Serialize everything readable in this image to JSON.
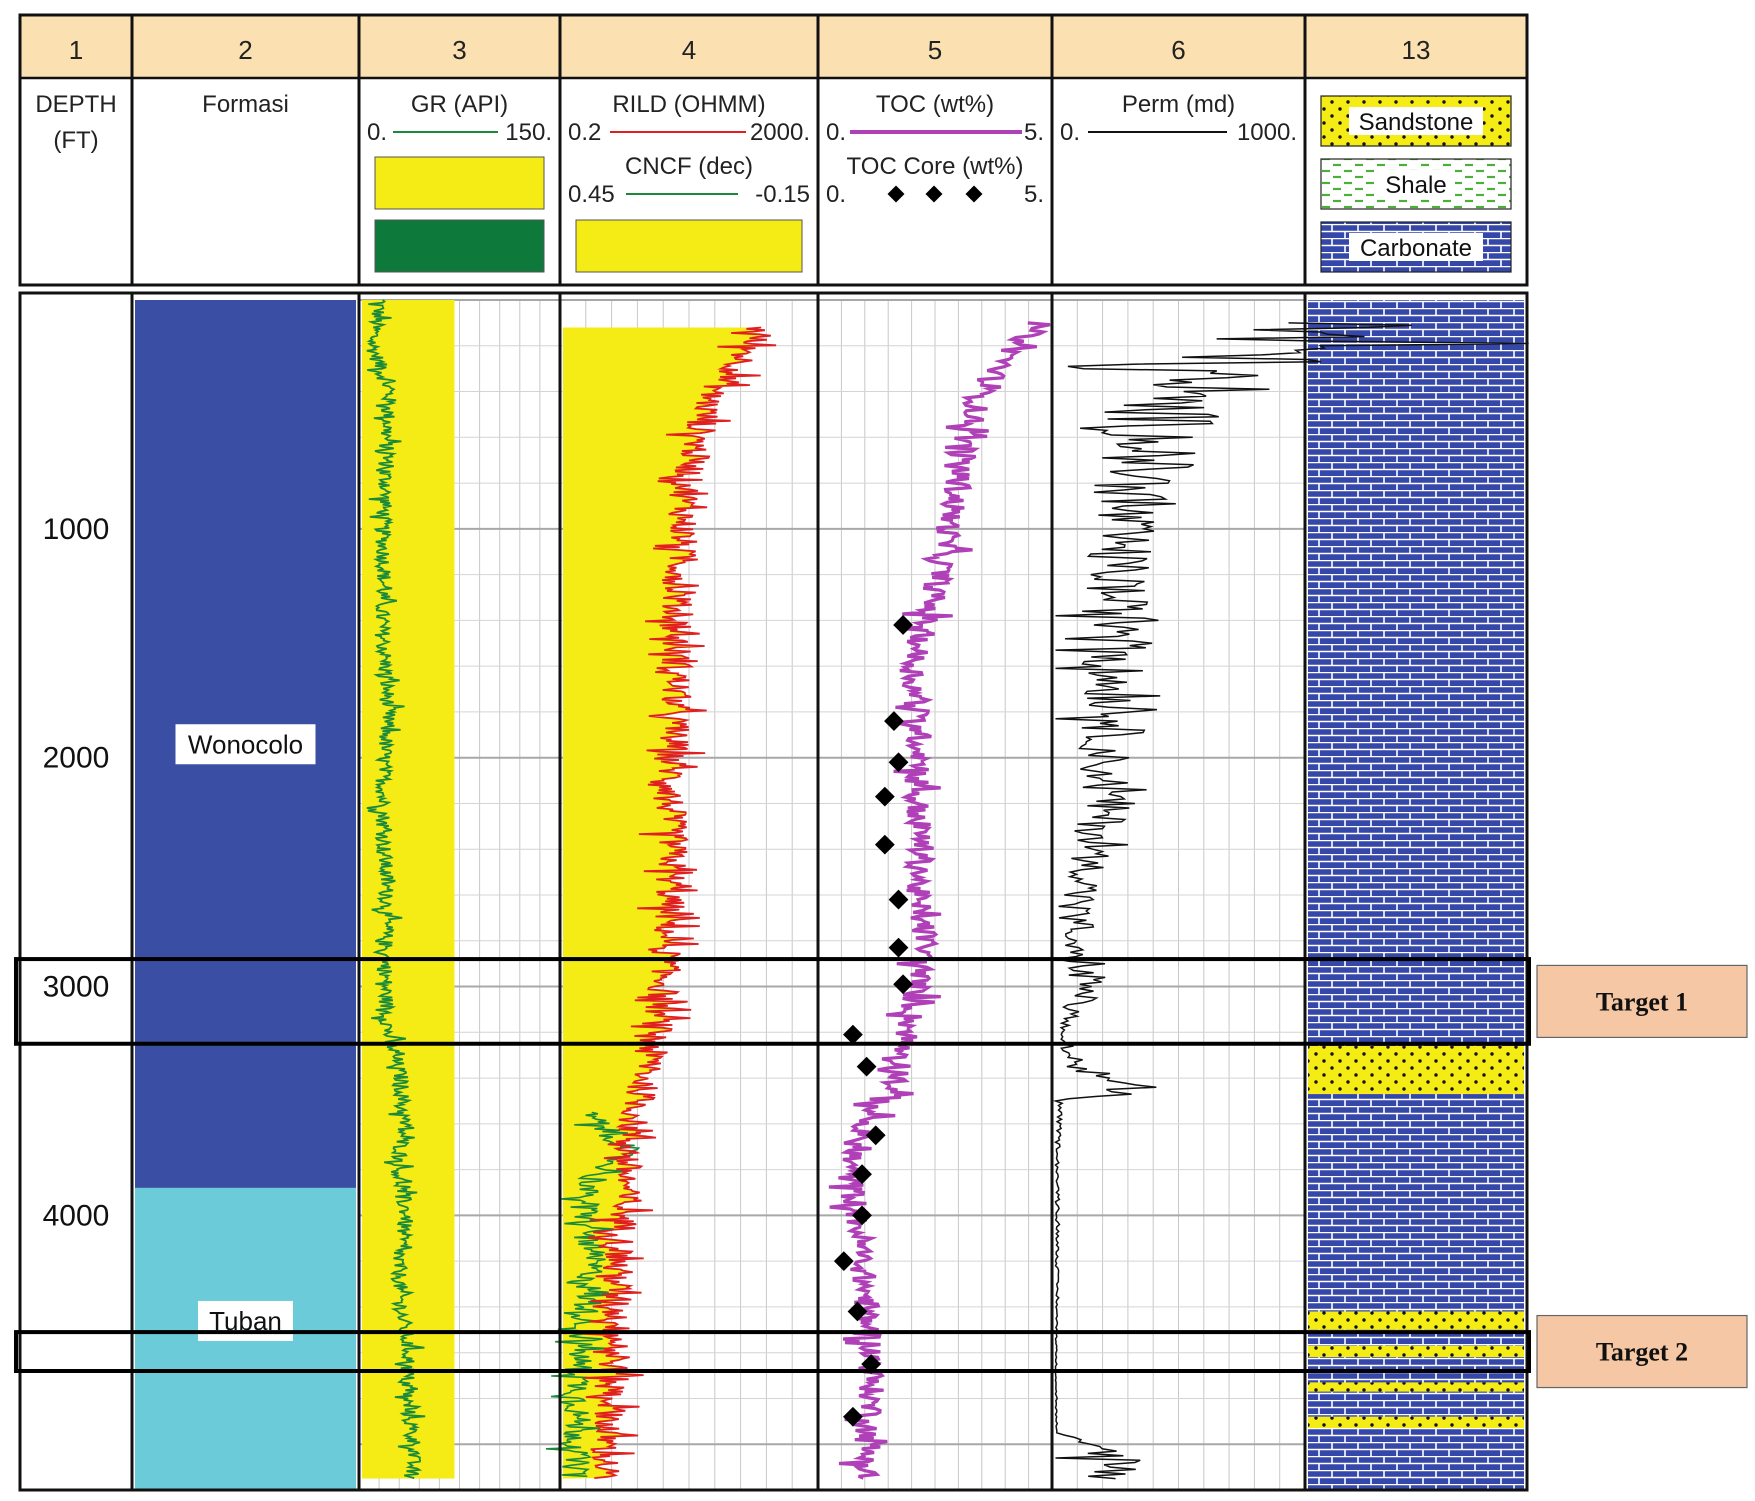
{
  "chart_data": {
    "type": "well-log",
    "depth_range_ft": [
      0,
      5200
    ],
    "track_numbers": [
      "1",
      "2",
      "3",
      "4",
      "5",
      "6",
      "13"
    ],
    "tracks": {
      "depth": {
        "label_line1": "DEPTH",
        "label_line2": "(FT)",
        "ticks": [
          "1000",
          "2000",
          "3000",
          "4000"
        ]
      },
      "formation": {
        "label": "Formasi",
        "units": [
          {
            "name": "Wonocolo",
            "top": 0,
            "base": 3880,
            "color": "#3a4fa3"
          },
          {
            "name": "Tuban",
            "top": 3880,
            "base": 5200,
            "color": "#6ccbd8"
          }
        ]
      },
      "gr": {
        "label": "GR (API)",
        "min": "0.",
        "max": "150.",
        "range": [
          0,
          150
        ],
        "line_color": "#1a8a3a",
        "fill_color": "#f5ec15",
        "legend_fill_colors": [
          "#f5ec15",
          "#0d7a3c"
        ],
        "depths": [
          0,
          200,
          400,
          600,
          800,
          1000,
          1200,
          1400,
          1600,
          1800,
          2000,
          2200,
          2400,
          2600,
          2800,
          3000,
          3200,
          3400,
          3600,
          3800,
          4000,
          4200,
          4400,
          4600,
          4800,
          5000,
          5150
        ],
        "values": [
          14,
          8,
          21,
          19,
          18,
          16,
          17,
          15,
          18,
          20,
          17,
          16,
          17,
          19,
          18,
          18,
          20,
          30,
          32,
          28,
          34,
          28,
          30,
          36,
          34,
          40,
          38
        ]
      },
      "rild": {
        "label": "RILD (OHMM)",
        "min": "0.2",
        "max": "2000.",
        "range": [
          0.2,
          2000
        ],
        "scale": "log",
        "line_color": "#e02020",
        "fill_color": "#f5ec15",
        "depths": [
          120,
          200,
          400,
          600,
          800,
          1000,
          1200,
          1400,
          1600,
          1800,
          2000,
          2200,
          2400,
          2600,
          2800,
          3000,
          3200,
          3400,
          3600,
          3800,
          4000,
          4200,
          4400,
          4600,
          4800,
          5000,
          5150
        ],
        "values": [
          260,
          180,
          45,
          28,
          18,
          16,
          14,
          12,
          13,
          12,
          11,
          10,
          11,
          10,
          9,
          8,
          6,
          4,
          2.5,
          2.0,
          1.8,
          1.5,
          1.4,
          1.3,
          1.2,
          1.0,
          0.9
        ]
      },
      "cncf": {
        "label": "CNCF (dec)",
        "min": "0.45",
        "max": "-0.15",
        "range": [
          0.45,
          -0.15
        ],
        "line_color": "#1a8a3a",
        "legend_fill_color": "#f5ec15"
      },
      "toc": {
        "label": "TOC (wt%)",
        "min": "0.",
        "max": "5.",
        "range": [
          0,
          5
        ],
        "line_color": "#b040b8",
        "depths": [
          100,
          200,
          400,
          600,
          800,
          1000,
          1200,
          1400,
          1600,
          1800,
          2000,
          2200,
          2400,
          2600,
          2800,
          3000,
          3200,
          3400,
          3600,
          3800,
          4000,
          4200,
          4400,
          4600,
          4800,
          5000,
          5150
        ],
        "values": [
          4.8,
          4.3,
          3.5,
          3.2,
          3.0,
          2.8,
          2.6,
          2.3,
          2.0,
          2.1,
          2.2,
          2.1,
          2.2,
          2.1,
          2.3,
          2.1,
          1.9,
          1.7,
          0.9,
          0.6,
          0.8,
          0.9,
          1.0,
          1.1,
          1.1,
          1.0,
          1.0
        ]
      },
      "toc_core": {
        "label": "TOC Core (wt%)",
        "min": "0.",
        "max": "5.",
        "depths": [
          1420,
          1840,
          2020,
          2170,
          2380,
          2620,
          2830,
          2990,
          3210,
          3350,
          3650,
          3820,
          4000,
          4200,
          4420,
          4650,
          4880
        ],
        "values": [
          1.8,
          1.6,
          1.7,
          1.4,
          1.4,
          1.7,
          1.7,
          1.8,
          0.7,
          1.0,
          1.2,
          0.9,
          0.9,
          0.5,
          0.8,
          1.1,
          0.7
        ]
      },
      "perm": {
        "label": "Perm (md)",
        "min": "0.",
        "max": "1000.",
        "range": [
          0,
          1000
        ],
        "line_color": "#111111",
        "depths": [
          100,
          200,
          300,
          400,
          600,
          800,
          1000,
          1200,
          1400,
          1500,
          1600,
          1800,
          2000,
          2200,
          2400,
          2600,
          2800,
          3000,
          3100,
          3200,
          3350,
          3450,
          3500,
          3800,
          4200,
          4600,
          4950,
          5050,
          5150
        ],
        "values": [
          1000,
          980,
          600,
          450,
          420,
          330,
          260,
          250,
          240,
          380,
          230,
          260,
          200,
          210,
          150,
          120,
          60,
          140,
          80,
          20,
          60,
          380,
          20,
          10,
          10,
          5,
          5,
          250,
          250
        ]
      },
      "lithology": {
        "legend": [
          {
            "name": "Sandstone",
            "fill": "#f5ec15",
            "pattern": "dots"
          },
          {
            "name": "Shale",
            "fill": "#8fd36a",
            "pattern": "dashes"
          },
          {
            "name": "Carbonate",
            "fill": "#3547a8",
            "pattern": "bricks"
          }
        ],
        "intervals": [
          {
            "top": 0,
            "base": 3260,
            "type": "Carbonate"
          },
          {
            "top": 3260,
            "base": 3470,
            "type": "Sandstone"
          },
          {
            "top": 3470,
            "base": 4420,
            "type": "Carbonate"
          },
          {
            "top": 4420,
            "base": 4500,
            "type": "Sandstone"
          },
          {
            "top": 4500,
            "base": 4570,
            "type": "Carbonate"
          },
          {
            "top": 4570,
            "base": 4620,
            "type": "Sandstone"
          },
          {
            "top": 4620,
            "base": 4730,
            "type": "Carbonate"
          },
          {
            "top": 4730,
            "base": 4770,
            "type": "Sandstone"
          },
          {
            "top": 4770,
            "base": 4880,
            "type": "Carbonate"
          },
          {
            "top": 4880,
            "base": 4930,
            "type": "Sandstone"
          },
          {
            "top": 4930,
            "base": 5200,
            "type": "Carbonate"
          }
        ]
      }
    },
    "targets": [
      {
        "label": "Target 1",
        "top": 2880,
        "base": 3250
      },
      {
        "label": "Target 2",
        "top": 4510,
        "base": 4680
      }
    ]
  }
}
